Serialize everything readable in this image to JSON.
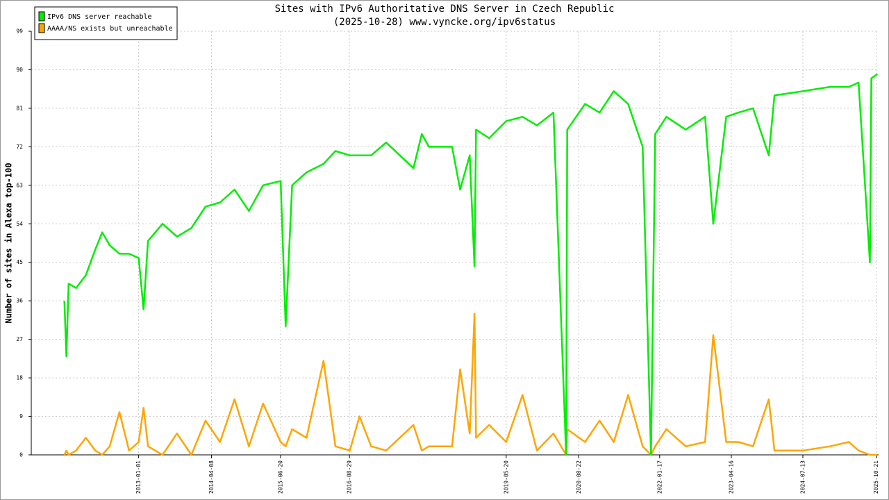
{
  "chart_data": {
    "type": "line",
    "title": "Sites with IPv6 Authoritative DNS Server in Czech Republic",
    "subtitle": "(2025-10-28) www.vyncke.org/ipv6status",
    "y_label": "Number of sites in Alexa top-100",
    "legend": "top-left",
    "grid": true,
    "x": [
      "2011-09-18",
      "2011-10-01",
      "2011-10-15",
      "2011-12-01",
      "2012-02-01",
      "2012-04-01",
      "2012-05-15",
      "2012-07-01",
      "2012-09-01",
      "2012-11-01",
      "2013-01-01",
      "2013-02-01",
      "2013-03-01",
      "2013-06-01",
      "2013-09-01",
      "2013-12-01",
      "2014-03-01",
      "2014-06-01",
      "2014-09-01",
      "2014-12-01",
      "2015-03-01",
      "2015-06-20",
      "2015-07-22",
      "2015-09-01",
      "2015-12-01",
      "2016-03-18",
      "2016-06-01",
      "2016-09-01",
      "2016-11-01",
      "2017-01-14",
      "2017-04-19",
      "2017-10-09",
      "2017-12-01",
      "2018-01-15",
      "2018-06-11",
      "2018-08-01",
      "2018-10-01",
      "2018-10-31",
      "2018-11-10",
      "2019-02-01",
      "2019-05-20",
      "2019-09-01",
      "2019-12-01",
      "2020-03-15",
      "2020-06-03",
      "2020-06-10",
      "2020-10-01",
      "2021-01-01",
      "2021-04-01",
      "2021-07-01",
      "2021-10-01",
      "2021-11-23",
      "2021-12-20",
      "2022-03-01",
      "2022-07-01",
      "2022-11-01",
      "2022-12-23",
      "2023-03-15",
      "2023-06-01",
      "2023-09-01",
      "2023-12-10",
      "2024-01-15",
      "2024-07-13",
      "2025-01-01",
      "2025-05-01",
      "2025-07-01",
      "2025-09-11",
      "2025-09-20",
      "2025-10-28"
    ],
    "series": [
      {
        "name": "IPv6 DNS server reachable",
        "color": "#00ee00",
        "values": [
          36,
          23,
          40,
          39,
          42,
          48,
          52,
          49,
          47,
          47,
          46,
          34,
          50,
          54,
          51,
          53,
          58,
          59,
          62,
          57,
          63,
          64,
          30,
          63,
          66,
          68,
          71,
          70,
          70,
          70,
          73,
          67,
          75,
          72,
          72,
          62,
          70,
          44,
          76,
          74,
          78,
          79,
          77,
          80,
          0,
          76,
          82,
          80,
          85,
          82,
          72,
          0,
          75,
          79,
          76,
          79,
          54,
          79,
          80,
          81,
          70,
          84,
          85,
          86,
          86,
          87,
          45,
          88,
          89
        ]
      },
      {
        "name": "AAAA/NS exists but unreachable",
        "color": "#ffa500",
        "values": [
          0,
          1,
          0,
          1,
          4,
          1,
          0,
          2,
          10,
          1,
          3,
          11,
          2,
          0,
          5,
          0,
          8,
          3,
          13,
          2,
          12,
          3,
          2,
          6,
          4,
          22,
          2,
          1,
          9,
          2,
          1,
          7,
          1,
          2,
          2,
          20,
          5,
          33,
          4,
          7,
          3,
          14,
          1,
          5,
          0,
          6,
          3,
          8,
          3,
          14,
          2,
          0,
          2,
          6,
          2,
          3,
          28,
          3,
          3,
          2,
          13,
          1,
          1,
          2,
          3,
          1,
          0,
          0,
          0
        ]
      }
    ],
    "xlim": [
      "2011-02-20",
      "2025-11-05"
    ],
    "xticks": [
      "2013-01-01",
      "2014-04-08",
      "2015-06-20",
      "2016-08-29",
      "2019-05-20",
      "2020-08-22",
      "2022-01-17",
      "2023-04-16",
      "2024-07-13",
      "2025-10-21"
    ],
    "ylim": [
      0,
      99
    ],
    "yticks": [
      0,
      9,
      18,
      27,
      36,
      45,
      54,
      63,
      72,
      81,
      90,
      99
    ]
  }
}
